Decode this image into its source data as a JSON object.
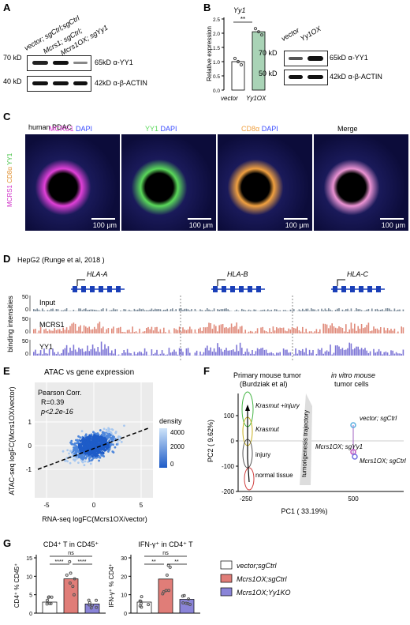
{
  "panels": {
    "a": "A",
    "b": "B",
    "c": "C",
    "d": "D",
    "e": "E",
    "f": "F",
    "g": "G"
  },
  "panelA": {
    "lanes": [
      "vector; sgCtrl;sgCtrl",
      "Mcrs1; sgCtrl;",
      "Mcrs1OX; sgYy1"
    ],
    "mw_top": "70 kD",
    "mw_bot": "40 kD",
    "label_top": "65kD α-YY1",
    "label_bot": "42kD α-β-ACTIN"
  },
  "panelB": {
    "gene": "Yy1",
    "ylabel": "Relative expression",
    "sig": "**",
    "yticks": [
      "0.0",
      "0.5",
      "1.0",
      "1.5",
      "2.0",
      "2.5"
    ],
    "bars": [
      {
        "label": "vector",
        "value": 1.0,
        "color": "#ffffff"
      },
      {
        "label": "Yy1OX",
        "value": 2.05,
        "color": "#a9d3b6"
      }
    ],
    "blot_lanes": [
      "vector",
      "Yy1OX"
    ],
    "mw_top": "70 kD",
    "mw_bot": "50 kD",
    "label_top": "65kD α-YY1",
    "label_bot": "42kD α-β-ACTIN"
  },
  "panelC": {
    "title": "human PDAC",
    "side_label": [
      "MCRS1",
      "CD8α",
      "YY1"
    ],
    "tiles": [
      {
        "a": "MCRS1",
        "b": "DAPI",
        "ca": "#e040d8",
        "cb": "#3a4cff"
      },
      {
        "a": "YY1",
        "b": "DAPI",
        "ca": "#5ad85a",
        "cb": "#3a4cff"
      },
      {
        "a": "CD8α",
        "b": "DAPI",
        "ca": "#f0a040",
        "cb": "#3a4cff"
      },
      {
        "a": "Merge",
        "b": "",
        "ca": "#000",
        "cb": "#000"
      }
    ],
    "scalebar": "100 μm"
  },
  "panelD": {
    "title": "HepG2 (Runge et al, 2018 )",
    "genes": [
      "HLA-A",
      "HLA-B",
      "HLA-C"
    ],
    "ylabel": "binding intensities",
    "tracks": [
      {
        "name": "Input",
        "scale": "50",
        "color": "#7a8a99"
      },
      {
        "name": "MCRS1",
        "scale": "50",
        "color": "#e08a7a"
      },
      {
        "name": "YY1",
        "scale": "50",
        "color": "#7d75d6"
      }
    ],
    "zero": "0"
  },
  "panelE": {
    "title": "ATAC vs gene expression",
    "stats": [
      "Pearson Corr.",
      "R=0.39",
      "p<2.2e-16"
    ],
    "xlabel": "RNA-seq logFC(Mcrs1OX/vector)",
    "ylabel": "ATAC-seq logFC(Mcrs1OX/vector)",
    "legend_title": "density",
    "legend_ticks": [
      "4000",
      "2000",
      "0"
    ],
    "xticks": [
      "-5",
      "0",
      "5"
    ],
    "yticks": [
      "1",
      "0",
      "-1"
    ]
  },
  "panelF": {
    "title_left": "Primary mouse tumor",
    "title_left2": "(Burdziak et al)",
    "title_right": "in vitro mouse",
    "title_right2": "tumor cells",
    "ylabel": "PC2 ( 9.62%)",
    "xlabel": "PC1 ( 33.19%)",
    "yticks": [
      "100",
      "0",
      "-100",
      "-200"
    ],
    "xticks": [
      "-250",
      "500"
    ],
    "groups": [
      "Krasmut +injury",
      "Krasmut",
      "injury",
      "normal tissue"
    ],
    "traj": "tumorigenesis trajectory",
    "samples": [
      "vector; sgCtrl",
      "Mcrs1OX; sgYy1",
      "Mcrs1OX; sgCtrl"
    ]
  },
  "panelG": {
    "chart_data": [
      {
        "type": "bar",
        "title": "CD4⁺ T in CD45⁺",
        "ylabel": "CD4⁺ % CD45⁺",
        "ylim": [
          0,
          15
        ],
        "yticks": [
          "0",
          "5",
          "10",
          "15"
        ],
        "categories": [
          "vector;sgCtrl",
          "Mcrs1OX;sgCtrl",
          "Mcrs1OX;Yy1KO"
        ],
        "values": [
          3.0,
          9.3,
          2.5
        ],
        "sig": [
          "ns",
          "****",
          "****"
        ]
      },
      {
        "type": "bar",
        "title": "IFN-γ⁺ in CD4⁺ T",
        "ylabel": "IFN-γ⁺ % CD4⁺",
        "ylim": [
          0,
          30
        ],
        "yticks": [
          "0",
          "10",
          "20",
          "30"
        ],
        "categories": [
          "vector;sgCtrl",
          "Mcrs1OX;sgCtrl",
          "Mcrs1OX;Yy1KO"
        ],
        "values": [
          6.0,
          18.5,
          7.5
        ],
        "sig": [
          "ns",
          "**",
          "**"
        ]
      }
    ],
    "legend": [
      {
        "label": "vector;sgCtrl",
        "color": "#ffffff"
      },
      {
        "label": "Mcrs1OX;sgCtrl",
        "color": "#e07d78"
      },
      {
        "label": "Mcrs1OX;Yy1KO",
        "color": "#8a84d8"
      }
    ]
  }
}
